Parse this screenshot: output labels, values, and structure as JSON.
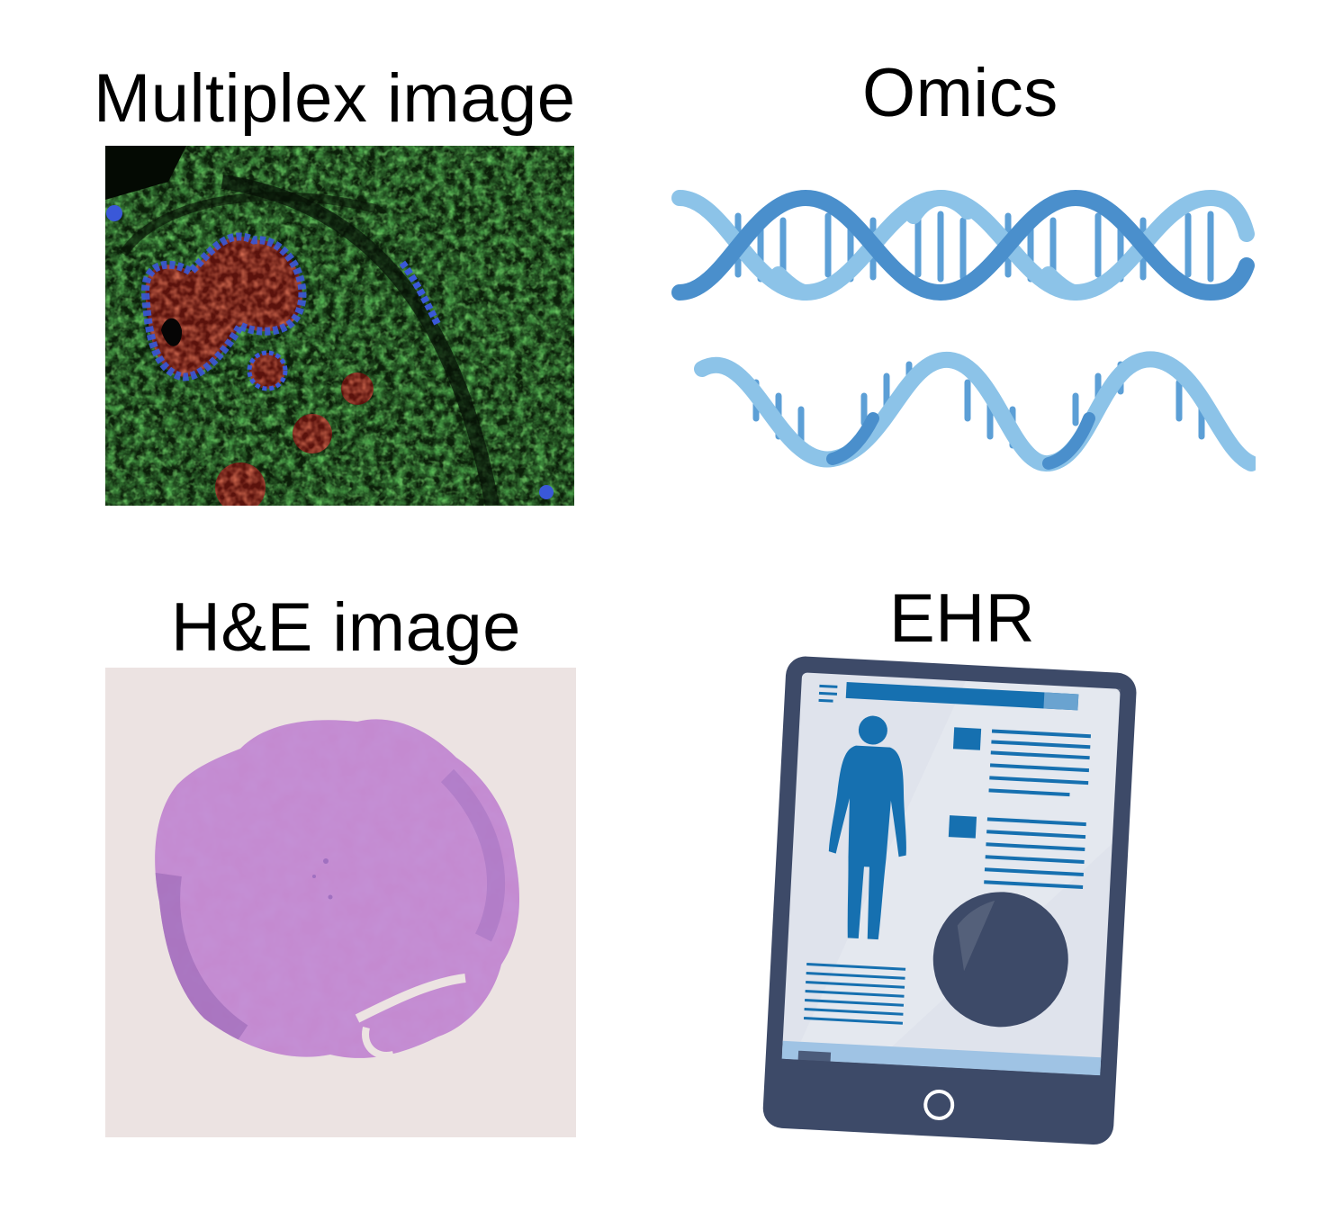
{
  "panels": {
    "multiplex": {
      "title": "Multiplex image",
      "icon": "multiplex-fluorescence-image"
    },
    "omics": {
      "title": "Omics",
      "icon": "dna-double-helix-icon"
    },
    "he": {
      "title": "H&E image",
      "icon": "he-stained-tissue-image"
    },
    "ehr": {
      "title": "EHR",
      "icon": "tablet-health-record-icon"
    }
  },
  "colors": {
    "fluorescence_green": "#2e8a2a",
    "fluorescence_red": "#b03020",
    "fluorescence_blue": "#3050d0",
    "he_pink": "#b574c4",
    "he_background": "#ece3e2",
    "dna_light": "#8cc3e8",
    "dna_dark": "#4a8fcc",
    "tablet_frame": "#3d4a68",
    "tablet_screen": "#dfe3ec",
    "ehr_blue": "#1670b0"
  }
}
